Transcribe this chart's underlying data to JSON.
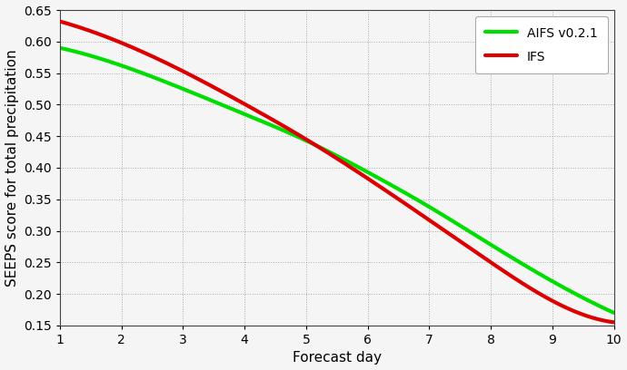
{
  "aifs_x": [
    1,
    2,
    3,
    4,
    5,
    6,
    7,
    8,
    9,
    10
  ],
  "aifs_y": [
    0.59,
    0.562,
    0.525,
    0.485,
    0.443,
    0.393,
    0.338,
    0.278,
    0.22,
    0.17
  ],
  "ifs_x": [
    1,
    2,
    3,
    4,
    5,
    6,
    7,
    8,
    9,
    10
  ],
  "ifs_y": [
    0.632,
    0.598,
    0.553,
    0.501,
    0.445,
    0.383,
    0.317,
    0.25,
    0.189,
    0.155
  ],
  "aifs_color": "#00dd00",
  "ifs_color": "#dd0000",
  "aifs_label": "AIFS v0.2.1",
  "ifs_label": "IFS",
  "xlabel": "Forecast day",
  "ylabel": "SEEPS score for total precipitation",
  "xlim": [
    1,
    10
  ],
  "ylim": [
    0.15,
    0.65
  ],
  "yticks": [
    0.15,
    0.2,
    0.25,
    0.3,
    0.35,
    0.4,
    0.45,
    0.5,
    0.55,
    0.6,
    0.65
  ],
  "xticks": [
    1,
    2,
    3,
    4,
    5,
    6,
    7,
    8,
    9,
    10
  ],
  "line_width": 3.0,
  "background_color": "#f5f5f5",
  "plot_bg_color": "#f5f5f5",
  "grid_color": "#888888",
  "spine_color": "#444444"
}
